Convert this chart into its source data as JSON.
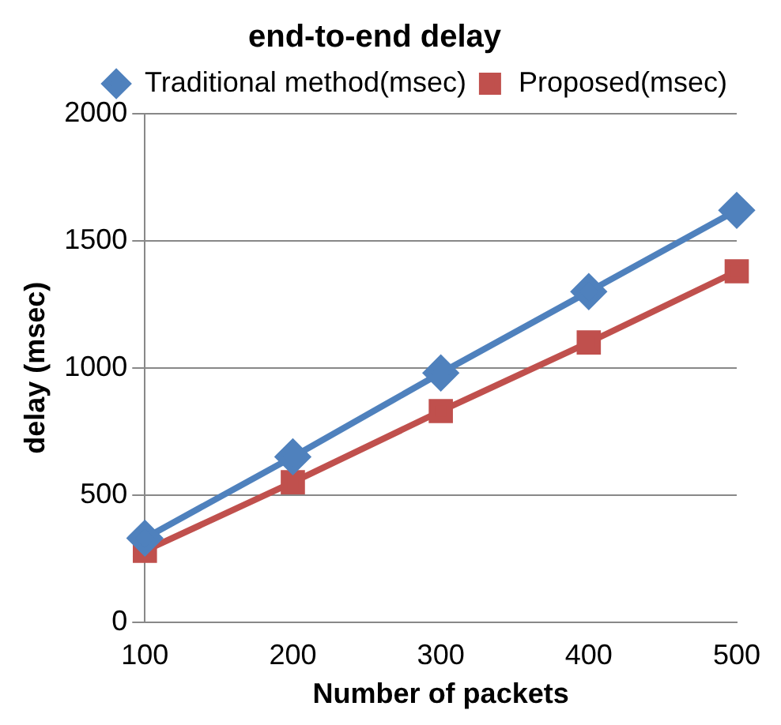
{
  "chart_data": {
    "type": "line",
    "title": "end-to-end delay",
    "xlabel": "Number of packets",
    "ylabel": "delay (msec)",
    "categories": [
      "100",
      "200",
      "300",
      "400",
      "500"
    ],
    "series": [
      {
        "name": "Traditional method(msec)",
        "color": "#4f81bd",
        "marker": "diamond",
        "values": [
          330,
          650,
          980,
          1300,
          1620
        ]
      },
      {
        "name": "Proposed(msec)",
        "color": "#c0504d",
        "marker": "square",
        "values": [
          280,
          550,
          830,
          1100,
          1380
        ]
      }
    ],
    "ylim": [
      0,
      2000
    ],
    "yticks": [
      0,
      500,
      1000,
      1500,
      2000
    ],
    "grid": "y",
    "legend": "top"
  }
}
